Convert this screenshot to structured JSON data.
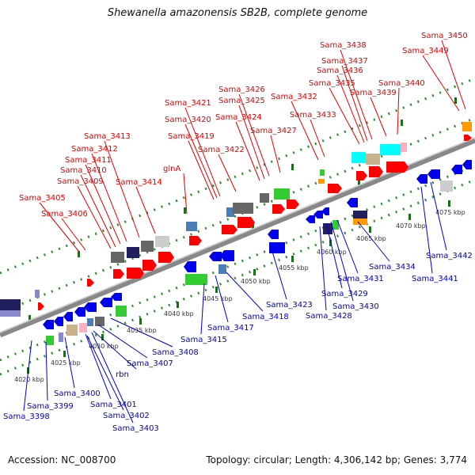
{
  "title": "Shewanella amazonensis SB2B, complete genome",
  "accession": "Accession: NC_008700",
  "topology": "Topology: circular; Length: 4,306,142 bp; Genes: 3,774",
  "colors": {
    "label_top": "#e00000",
    "label_bottom": "#0000c0",
    "dots": "#2e8b2e",
    "backbone": "#888888"
  },
  "kbp_ticks": [
    "4020 kbp",
    "4025 kbp",
    "4030 kbp",
    "4035 kbp",
    "4040 kbp",
    "4045 kbp",
    "4050 kbp",
    "4055 kbp",
    "4060 kbp",
    "4065 kbp",
    "4070 kbp",
    "4075 kbp"
  ],
  "genes_top": [
    "Sama_3405",
    "Sama_3406",
    "Sama_3409",
    "Sama_3410",
    "Sama_3411",
    "Sama_3412",
    "Sama_3413",
    "Sama_3414",
    "glnA",
    "Sama_3419",
    "Sama_3420",
    "Sama_3421",
    "Sama_3422",
    "Sama_3424",
    "Sama_3425",
    "Sama_3426",
    "Sama_3427",
    "Sama_3432",
    "Sama_3433",
    "Sama_3435",
    "Sama_3436",
    "Sama_3437",
    "Sama_3438",
    "Sama_3439",
    "Sama_3440",
    "Sama_3449",
    "Sama_3450"
  ],
  "genes_bottom": [
    "Sama_3398",
    "Sama_3399",
    "Sama_3400",
    "Sama_3401",
    "rbn",
    "Sama_3402",
    "Sama_3403",
    "Sama_3407",
    "Sama_3408",
    "Sama_3415",
    "Sama_3417",
    "Sama_3418",
    "Sama_3423",
    "Sama_3428",
    "Sama_3429",
    "Sama_3430",
    "Sama_3431",
    "Sama_3434",
    "Sama_3441",
    "Sama_3442"
  ]
}
